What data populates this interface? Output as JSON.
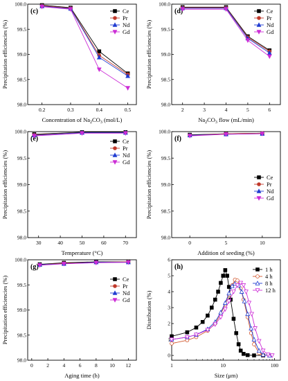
{
  "chart_data": [
    {
      "panel": "(c)",
      "type": "line",
      "xlabel": "Concentration of Na2CO3 (mol/L)",
      "xlabel_parts": [
        "Concentration of Na",
        "2",
        "CO",
        "3",
        " (mol/L)"
      ],
      "ylabel": "Precipitation efficiencies (%)",
      "xlim": [
        0.15,
        0.53
      ],
      "ylim": [
        98.0,
        100.0
      ],
      "xticks": [
        0.2,
        0.3,
        0.4,
        0.5
      ],
      "xtick_labels": [
        "0.2",
        "0.3",
        "0.4",
        "0.5"
      ],
      "yticks": [
        98.0,
        98.5,
        99.0,
        99.5,
        100.0
      ],
      "ytick_labels": [
        "98.0",
        "98.5",
        "99.0",
        "99.5",
        "100.0"
      ],
      "legend_position": "top-right",
      "x": [
        0.2,
        0.3,
        0.4,
        0.5
      ],
      "series": [
        {
          "name": "Ce",
          "values": [
            99.98,
            99.93,
            99.06,
            98.62
          ]
        },
        {
          "name": "Pr",
          "values": [
            99.97,
            99.92,
            98.98,
            98.6
          ]
        },
        {
          "name": "Nd",
          "values": [
            99.96,
            99.91,
            98.94,
            98.57
          ]
        },
        {
          "name": "Gd",
          "values": [
            99.95,
            99.9,
            98.7,
            98.33
          ]
        }
      ]
    },
    {
      "panel": "(d)",
      "type": "line",
      "xlabel": "Na2CO3 flow (mL/min)",
      "xlabel_parts": [
        "Na",
        "2",
        "CO",
        "3",
        " flow (mL/min)"
      ],
      "ylabel": "Precipitation efficiencies (%)",
      "xlim": [
        1.5,
        6.5
      ],
      "ylim": [
        98.0,
        100.0
      ],
      "xticks": [
        2,
        3,
        4,
        5,
        6
      ],
      "xtick_labels": [
        "2",
        "3",
        "4",
        "5",
        "6"
      ],
      "yticks": [
        98.0,
        98.5,
        99.0,
        99.5,
        100.0
      ],
      "ytick_labels": [
        "98.0",
        "98.5",
        "99.0",
        "99.5",
        "100.0"
      ],
      "legend_position": "top-right",
      "x": [
        2,
        4,
        5,
        6
      ],
      "series": [
        {
          "name": "Ce",
          "values": [
            99.94,
            99.94,
            99.36,
            99.08
          ]
        },
        {
          "name": "Pr",
          "values": [
            99.93,
            99.93,
            99.34,
            99.06
          ]
        },
        {
          "name": "Nd",
          "values": [
            99.92,
            99.92,
            99.32,
            99.03
          ]
        },
        {
          "name": "Gd",
          "values": [
            99.9,
            99.9,
            99.28,
            98.96
          ]
        }
      ]
    },
    {
      "panel": "(e)",
      "type": "line",
      "xlabel": "Temperature (°C)",
      "xlabel_parts": [
        "Temperature (°C)",
        "",
        "",
        "",
        ""
      ],
      "ylabel": "Precipitation efficiencies (%)",
      "xlim": [
        25,
        75
      ],
      "ylim": [
        98.0,
        100.0
      ],
      "xticks": [
        30,
        40,
        50,
        60,
        70
      ],
      "xtick_labels": [
        "30",
        "40",
        "50",
        "60",
        "70"
      ],
      "yticks": [
        98.0,
        98.5,
        99.0,
        99.5,
        100.0
      ],
      "ytick_labels": [
        "98.0",
        "98.5",
        "99.0",
        "99.5",
        "100.0"
      ],
      "legend_position": "top-right",
      "x": [
        28,
        50,
        70
      ],
      "series": [
        {
          "name": "Ce",
          "values": [
            99.95,
            99.99,
            99.99
          ]
        },
        {
          "name": "Pr",
          "values": [
            99.94,
            99.98,
            99.98
          ]
        },
        {
          "name": "Nd",
          "values": [
            99.93,
            99.98,
            99.98
          ]
        },
        {
          "name": "Gd",
          "values": [
            99.92,
            99.97,
            99.97
          ]
        }
      ]
    },
    {
      "panel": "(f)",
      "type": "line",
      "xlabel": "Addition of seeding (%)",
      "xlabel_parts": [
        "Addition of seeding (%)",
        "",
        "",
        "",
        ""
      ],
      "ylabel": "Precipitation efficiencies (%)",
      "xlim": [
        -2.5,
        12.5
      ],
      "ylim": [
        98.0,
        100.0
      ],
      "xticks": [
        0,
        5,
        10
      ],
      "xtick_labels": [
        "0",
        "5",
        "10"
      ],
      "yticks": [
        98.0,
        98.5,
        99.0,
        99.5,
        100.0
      ],
      "ytick_labels": [
        "98.0",
        "98.5",
        "99.0",
        "99.5",
        "100.0"
      ],
      "legend_position": "right",
      "x": [
        0,
        5,
        10
      ],
      "series": [
        {
          "name": "Ce",
          "values": [
            99.94,
            99.96,
            99.97
          ]
        },
        {
          "name": "Pr",
          "values": [
            99.93,
            99.96,
            99.97
          ]
        },
        {
          "name": "Nd",
          "values": [
            99.93,
            99.95,
            99.96
          ]
        },
        {
          "name": "Gd",
          "values": [
            99.92,
            99.95,
            99.96
          ]
        }
      ]
    },
    {
      "panel": "(g)",
      "type": "line",
      "xlabel": "Aging time (h)",
      "xlabel_parts": [
        "Aging time (h)",
        "",
        "",
        "",
        ""
      ],
      "ylabel": "Precipitation efficiencies (%)",
      "xlim": [
        -0.5,
        13
      ],
      "ylim": [
        98.0,
        100.0
      ],
      "xticks": [
        0,
        2,
        4,
        6,
        8,
        10,
        12
      ],
      "xtick_labels": [
        "0",
        "2",
        "4",
        "6",
        "8",
        "10",
        "12"
      ],
      "yticks": [
        98.0,
        98.5,
        99.0,
        99.5,
        100.0
      ],
      "ytick_labels": [
        "98.0",
        "98.5",
        "99.0",
        "99.5",
        "100.0"
      ],
      "legend_position": "top-right",
      "x": [
        1,
        4,
        8,
        12
      ],
      "series": [
        {
          "name": "Ce",
          "values": [
            99.91,
            99.94,
            99.96,
            99.96
          ]
        },
        {
          "name": "Pr",
          "values": [
            99.9,
            99.93,
            99.95,
            99.96
          ]
        },
        {
          "name": "Nd",
          "values": [
            99.9,
            99.92,
            99.95,
            99.95
          ]
        },
        {
          "name": "Gd",
          "values": [
            99.89,
            99.92,
            99.94,
            99.95
          ]
        }
      ]
    },
    {
      "panel": "(h)",
      "type": "line",
      "xscale": "log",
      "xlabel": "Size (μm)",
      "xlabel_parts": [
        "Size (μm)",
        "",
        "",
        "",
        ""
      ],
      "ylabel": "Distribution (%)",
      "xlim": [
        1,
        130
      ],
      "ylim": [
        -0.3,
        6.0
      ],
      "xticks": [
        1,
        10,
        100
      ],
      "xtick_labels": [
        "1",
        "10",
        "100"
      ],
      "yticks": [
        0,
        1,
        2,
        3,
        4,
        5,
        6
      ],
      "ytick_labels": [
        "0",
        "1",
        "2",
        "3",
        "4",
        "5",
        "6"
      ],
      "legend_position": "top-right",
      "series": [
        {
          "name": "1 h",
          "x": [
            1,
            2,
            3,
            4,
            5,
            6,
            7,
            8,
            9,
            10,
            11,
            12,
            13,
            14,
            16,
            18,
            20,
            22,
            25,
            30,
            40,
            60
          ],
          "values": [
            1.2,
            1.45,
            1.75,
            2.1,
            2.5,
            3.0,
            3.5,
            4.0,
            4.55,
            5.0,
            5.35,
            5.0,
            4.3,
            3.5,
            2.3,
            1.4,
            0.7,
            0.3,
            0.1,
            0.02,
            0,
            0
          ]
        },
        {
          "name": "4 h",
          "x": [
            1,
            2,
            3,
            5,
            7,
            9,
            11,
            13,
            15,
            17,
            19,
            22,
            25,
            30,
            35,
            40,
            50,
            60,
            80
          ],
          "values": [
            0.75,
            0.95,
            1.15,
            1.55,
            2.0,
            2.6,
            3.2,
            3.8,
            4.4,
            4.75,
            4.7,
            4.2,
            3.5,
            2.4,
            1.4,
            0.7,
            0.15,
            0.02,
            0
          ]
        },
        {
          "name": "8 h",
          "x": [
            1,
            2,
            3,
            5,
            7,
            9,
            11,
            13,
            15,
            17,
            20,
            23,
            26,
            30,
            35,
            40,
            50,
            60,
            80
          ],
          "values": [
            1.0,
            1.15,
            1.3,
            1.65,
            2.1,
            2.7,
            3.3,
            3.9,
            4.35,
            4.5,
            4.4,
            4.0,
            3.4,
            2.6,
            1.7,
            1.0,
            0.3,
            0.05,
            0
          ]
        },
        {
          "name": "12 h",
          "x": [
            1,
            2,
            3,
            5,
            7,
            9,
            11,
            13,
            16,
            19,
            22,
            25,
            28,
            32,
            36,
            42,
            50,
            60,
            75,
            90
          ],
          "values": [
            1.0,
            1.15,
            1.3,
            1.6,
            1.95,
            2.4,
            2.9,
            3.4,
            4.0,
            4.4,
            4.55,
            4.4,
            4.0,
            3.3,
            2.6,
            1.7,
            0.9,
            0.3,
            0.05,
            0
          ]
        }
      ]
    }
  ],
  "styles": {
    "Ce": {
      "color": "#000000",
      "marker": "square"
    },
    "Pr": {
      "color": "#c0392b",
      "marker": "circle"
    },
    "Nd": {
      "color": "#1f3bd1",
      "marker": "triangle-up"
    },
    "Gd": {
      "color": "#cc2cd6",
      "marker": "triangle-down"
    },
    "1 h": {
      "color": "#000000",
      "marker": "square"
    },
    "4 h": {
      "color": "#d0542a",
      "marker": "circle-open"
    },
    "8 h": {
      "color": "#1f3bd1",
      "marker": "triangle-up-open"
    },
    "12 h": {
      "color": "#cc2cd6",
      "marker": "triangle-down-open"
    }
  }
}
